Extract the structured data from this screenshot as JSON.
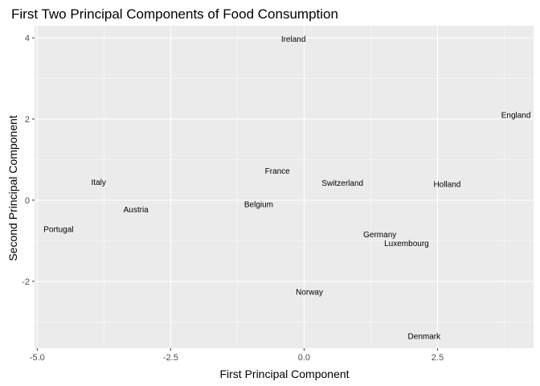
{
  "chart_data": {
    "type": "scatter",
    "title": "First Two Principal Components of Food Consumption",
    "xlabel": "First Principal Component",
    "ylabel": "Second Principal Component",
    "xlim": [
      -5.05,
      4.3
    ],
    "ylim": [
      -3.65,
      4.3
    ],
    "xticks": [
      -5.0,
      -2.5,
      0.0,
      2.5
    ],
    "xtick_labels": [
      "-5.0",
      "-2.5",
      "0.0",
      "2.5"
    ],
    "yticks": [
      -2,
      0,
      2,
      4
    ],
    "ytick_labels": [
      "-2",
      "0",
      "2",
      "4"
    ],
    "grid": true,
    "marker": "text-labels",
    "points": [
      {
        "label": "Ireland",
        "x": -0.2,
        "y": 3.97
      },
      {
        "label": "England",
        "x": 3.97,
        "y": 2.1
      },
      {
        "label": "France",
        "x": -0.5,
        "y": 0.72
      },
      {
        "label": "Italy",
        "x": -3.85,
        "y": 0.44
      },
      {
        "label": "Switzerland",
        "x": 0.72,
        "y": 0.42
      },
      {
        "label": "Holland",
        "x": 2.68,
        "y": 0.39
      },
      {
        "label": "Austria",
        "x": -3.15,
        "y": -0.23
      },
      {
        "label": "Belgium",
        "x": -0.85,
        "y": -0.1
      },
      {
        "label": "Portugal",
        "x": -4.6,
        "y": -0.72
      },
      {
        "label": "Germany",
        "x": 1.42,
        "y": -0.84
      },
      {
        "label": "Luxembourg",
        "x": 1.92,
        "y": -1.06
      },
      {
        "label": "Norway",
        "x": 0.1,
        "y": -2.26
      },
      {
        "label": "Denmark",
        "x": 2.25,
        "y": -3.35
      }
    ],
    "colors": {
      "panel": "#ebebeb",
      "grid_major": "#ffffff",
      "text": "#000000",
      "tick_text": "#4d4d4d",
      "tick_mark": "#333333"
    }
  }
}
